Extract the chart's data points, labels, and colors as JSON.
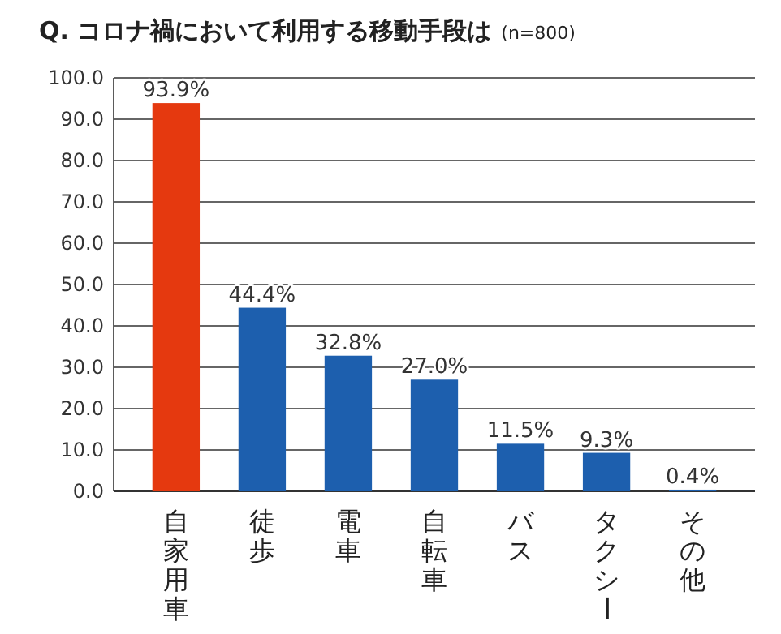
{
  "chart_data": {
    "type": "bar",
    "title": "Q. コロナ禍において利用する移動手段は",
    "subtitle": "(n=800)",
    "categories": [
      "自家用車",
      "徒歩",
      "電車",
      "自転車",
      "バス",
      "タクシー",
      "その他"
    ],
    "values": [
      93.9,
      44.4,
      32.8,
      27.0,
      11.5,
      9.3,
      0.4
    ],
    "colors": [
      "#e5390f",
      "#1d5fae",
      "#1d5fae",
      "#1d5fae",
      "#1d5fae",
      "#1d5fae",
      "#1d5fae"
    ],
    "value_labels": [
      "93.9%",
      "44.4%",
      "32.8%",
      "27.0%",
      "11.5%",
      "9.3%",
      "0.4%"
    ],
    "ylim": [
      0,
      100
    ],
    "yticks": [
      {
        "value": 0,
        "label": "0.0"
      },
      {
        "value": 10,
        "label": "10.0"
      },
      {
        "value": 20,
        "label": "20.0"
      },
      {
        "value": 30,
        "label": "30.0"
      },
      {
        "value": 40,
        "label": "40.0"
      },
      {
        "value": 50,
        "label": "50.0"
      },
      {
        "value": 60,
        "label": "60.0"
      },
      {
        "value": 70,
        "label": "70.0"
      },
      {
        "value": 80,
        "label": "80.0"
      },
      {
        "value": 90,
        "label": "90.0"
      },
      {
        "value": 100,
        "label": "100.0"
      }
    ],
    "grid": "y"
  }
}
